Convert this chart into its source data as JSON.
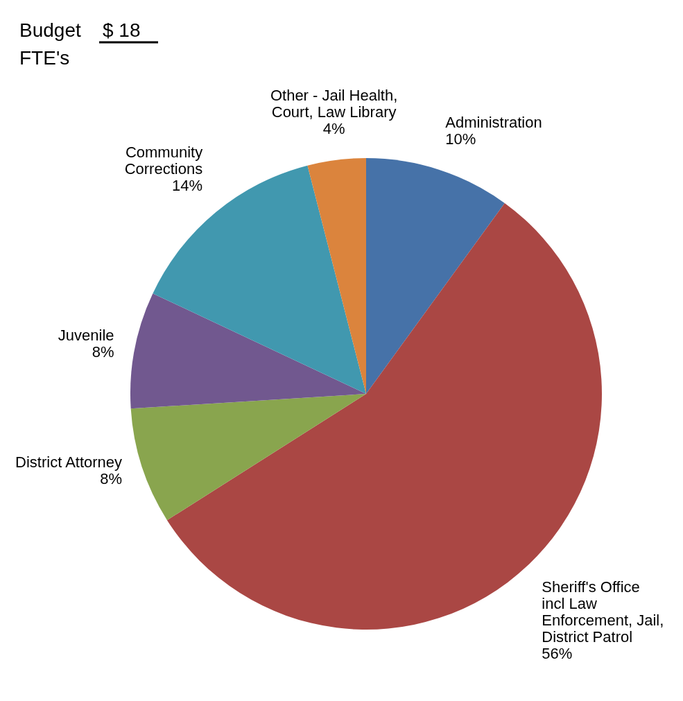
{
  "chart_data": {
    "type": "pie",
    "categories": [
      "Administration",
      "Sheriff's Office incl Law Enforcement, Jail, District Patrol",
      "District Attorney",
      "Juvenile",
      "Community Corrections",
      "Other - Jail Health, Court, Law Library"
    ],
    "values": [
      10,
      56,
      8,
      8,
      14,
      4
    ],
    "colors": [
      "#4672a8",
      "#aa4744",
      "#89a54e",
      "#71588f",
      "#4198af",
      "#db843d"
    ],
    "value_labels": [
      "10%",
      "56%",
      "8%",
      "8%",
      "14%",
      "4%"
    ],
    "annotations": [
      "Budget",
      "$ 18",
      "FTE's"
    ]
  }
}
